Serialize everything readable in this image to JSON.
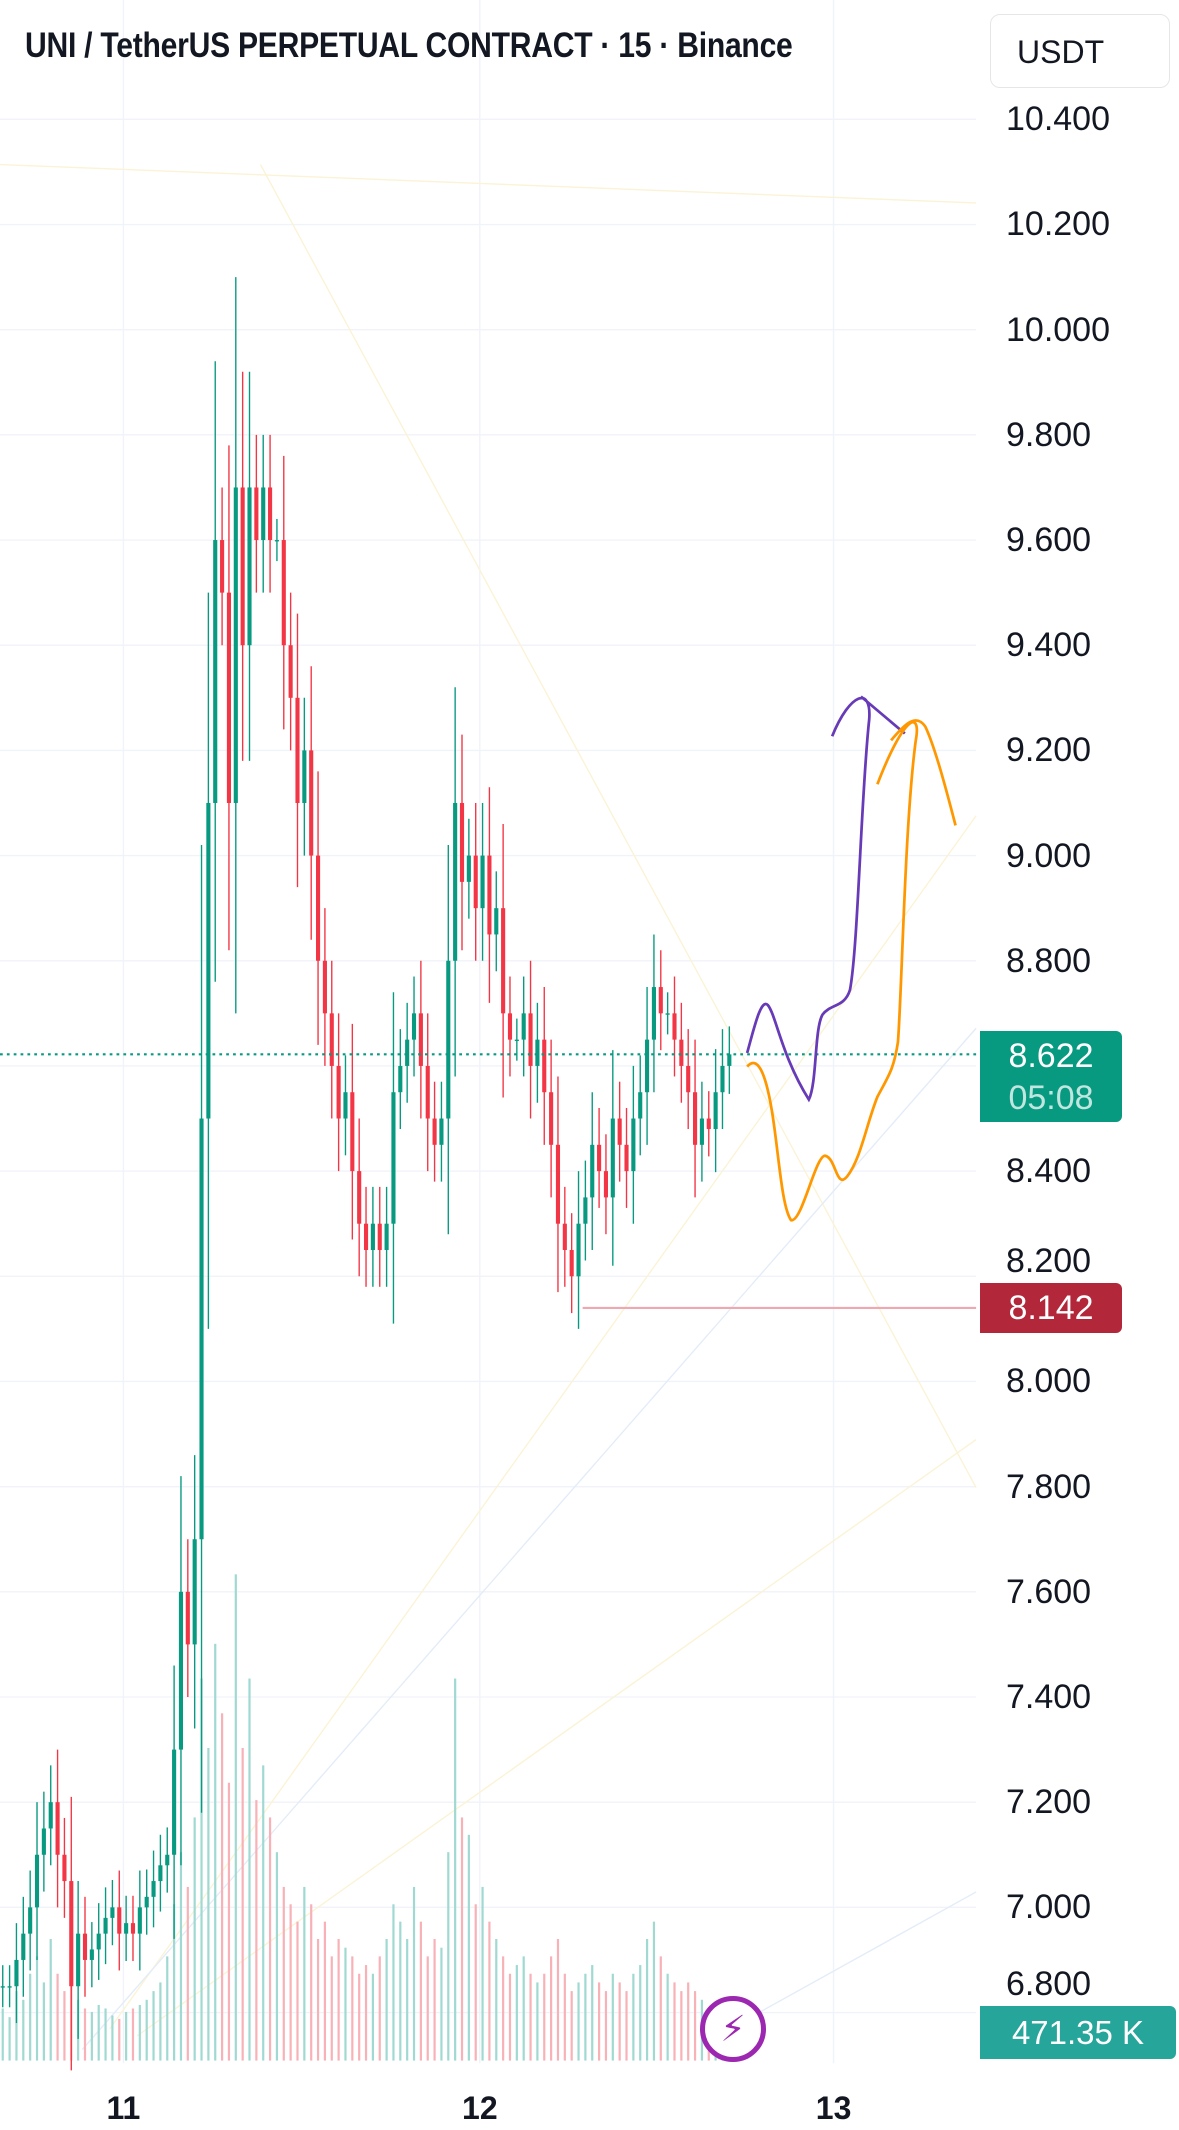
{
  "header": {
    "title": "UNI / TetherUS PERPETUAL CONTRACT · 15 · Binance",
    "currency": "USDT"
  },
  "price_axis": {
    "labels": [
      "10.400",
      "10.200",
      "10.000",
      "9.800",
      "9.600",
      "9.400",
      "9.200",
      "9.000",
      "8.800",
      "8.400",
      "8.200",
      "8.000",
      "7.800",
      "7.600",
      "7.400",
      "7.200",
      "7.000",
      "6.800"
    ]
  },
  "date_axis": {
    "labels": [
      "11",
      "12",
      "13"
    ]
  },
  "tags": {
    "current_price": "8.622",
    "countdown": "05:08",
    "low_price": "8.142",
    "volume": "471.35 K"
  },
  "icons": {
    "lightning": "lightning-icon"
  },
  "colors": {
    "up": "#089981",
    "down": "#f23645",
    "current_tag": "#089981",
    "low_tag": "#b2283a",
    "volume_tag": "#26a69a",
    "drawing_purple": "#673ab7",
    "drawing_orange": "#ff9800"
  },
  "chart_data": {
    "type": "candlestick",
    "title": "UNI / TetherUS PERPETUAL CONTRACT · 15 · Binance",
    "ylim": [
      6.8,
      10.4
    ],
    "x_ticks": [
      "11",
      "12",
      "13"
    ],
    "grid": true,
    "current_price": 8.622,
    "low_line": 8.142,
    "closes": [
      6.85,
      6.85,
      6.9,
      6.95,
      7.0,
      7.1,
      7.15,
      7.2,
      7.1,
      7.05,
      6.85,
      6.95,
      6.9,
      6.92,
      6.95,
      6.98,
      7.0,
      6.95,
      6.97,
      6.95,
      7.0,
      7.02,
      7.05,
      7.08,
      7.1,
      7.3,
      7.6,
      7.5,
      7.7,
      8.5,
      9.1,
      9.6,
      9.5,
      9.1,
      9.7,
      9.4,
      9.7,
      9.6,
      9.7,
      9.6,
      9.6,
      9.4,
      9.3,
      9.1,
      9.2,
      9.0,
      8.8,
      8.7,
      8.6,
      8.5,
      8.55,
      8.4,
      8.3,
      8.25,
      8.3,
      8.25,
      8.3,
      8.55,
      8.6,
      8.65,
      8.7,
      8.6,
      8.5,
      8.45,
      8.5,
      8.8,
      9.1,
      8.95,
      9.0,
      8.9,
      9.0,
      8.85,
      8.9,
      8.7,
      8.65,
      8.65,
      8.7,
      8.6,
      8.65,
      8.55,
      8.45,
      8.3,
      8.25,
      8.2,
      8.3,
      8.35,
      8.45,
      8.4,
      8.35,
      8.5,
      8.45,
      8.4,
      8.5,
      8.55,
      8.65,
      8.75,
      8.7,
      8.7,
      8.65,
      8.6,
      8.55,
      8.45,
      8.5,
      8.48,
      8.55,
      8.6,
      8.622
    ],
    "volumes_k": [
      300,
      250,
      400,
      350,
      500,
      600,
      450,
      700,
      500,
      400,
      600,
      350,
      300,
      280,
      320,
      300,
      260,
      240,
      280,
      300,
      320,
      350,
      400,
      450,
      600,
      900,
      1200,
      1000,
      1400,
      2200,
      1800,
      2400,
      2000,
      1600,
      2800,
      1800,
      2200,
      1500,
      1700,
      1400,
      1200,
      1000,
      900,
      800,
      1000,
      900,
      700,
      800,
      600,
      700,
      650,
      600,
      500,
      550,
      500,
      600,
      700,
      900,
      800,
      700,
      1000,
      800,
      600,
      700,
      650,
      1200,
      2200,
      1400,
      1300,
      900,
      1000,
      800,
      700,
      600,
      500,
      550,
      600,
      500,
      450,
      500,
      600,
      700,
      500,
      400,
      450,
      500,
      550,
      450,
      400,
      500,
      450,
      400,
      500,
      550,
      700,
      800,
      600,
      500,
      450,
      400,
      450,
      400,
      350,
      300,
      250,
      200,
      180
    ]
  }
}
